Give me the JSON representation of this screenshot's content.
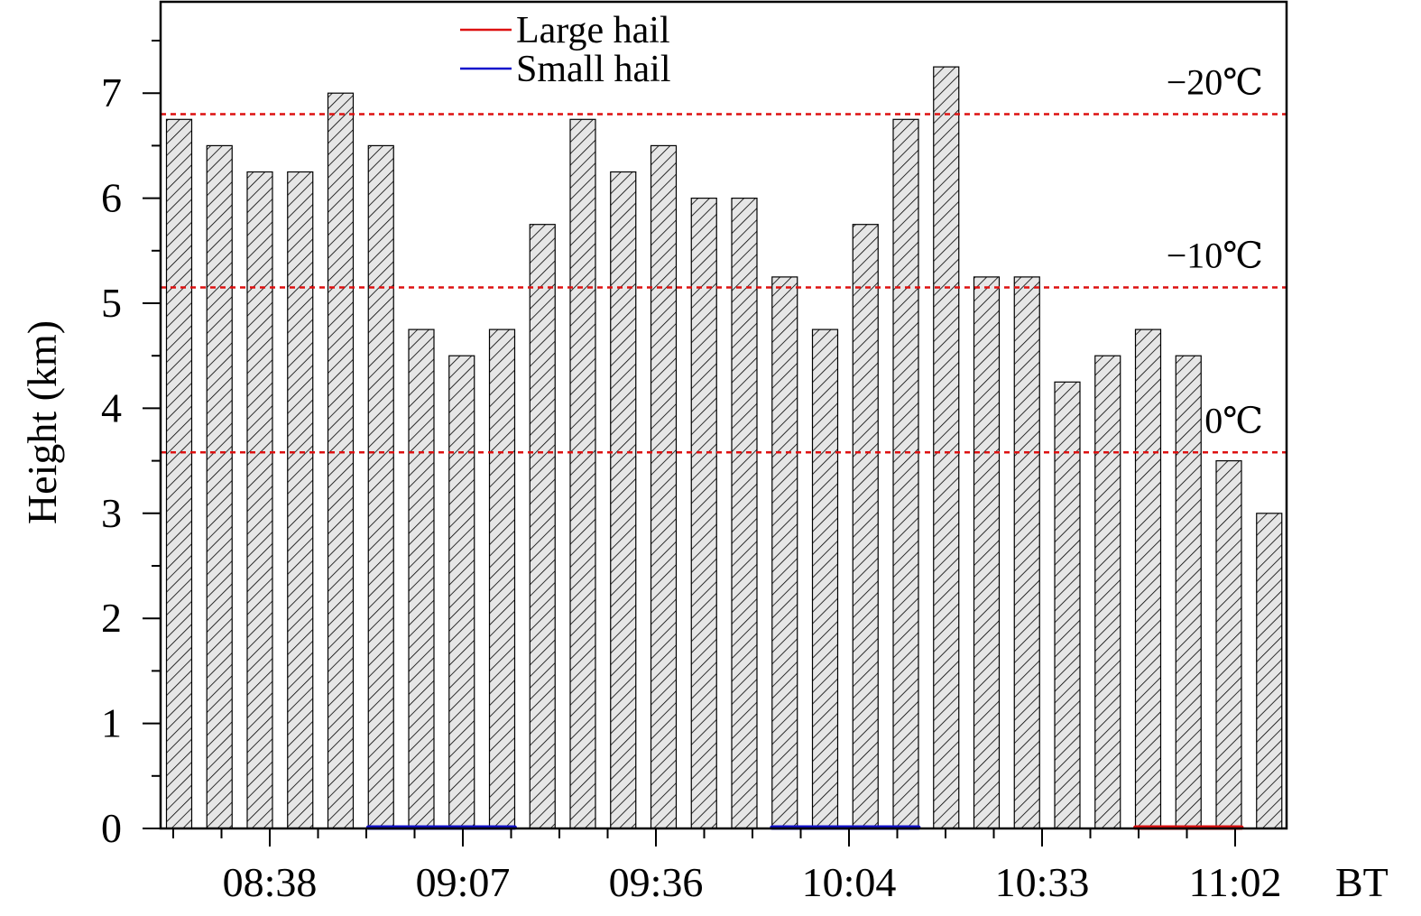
{
  "chart_data": {
    "type": "bar",
    "xlabel": "BT",
    "ylabel": "Height (km)",
    "ylim": [
      0,
      7.7
    ],
    "yticks": [
      0,
      1,
      2,
      3,
      4,
      5,
      6,
      7
    ],
    "x_tick_labels": [
      "08:38",
      "09:07",
      "09:36",
      "10:04",
      "10:33",
      "11:02"
    ],
    "values": [
      6.75,
      6.5,
      6.25,
      6.25,
      7.0,
      6.5,
      4.75,
      4.5,
      4.75,
      5.75,
      6.75,
      6.25,
      6.5,
      6.0,
      6.0,
      5.25,
      4.75,
      5.75,
      6.75,
      7.25,
      5.25,
      5.25,
      4.25,
      4.5,
      4.75,
      4.5,
      3.5,
      3.0
    ],
    "bar_fill": "#e6e6e6",
    "bar_pattern": "diagonal-hatch",
    "isotherms": [
      {
        "label": "−20℃",
        "value": 6.8,
        "color": "#dd1111"
      },
      {
        "label": "−10℃",
        "value": 5.15,
        "color": "#dd1111"
      },
      {
        "label": "0℃",
        "value": 3.58,
        "color": "#dd1111"
      }
    ],
    "legend": [
      {
        "label": "Large hail",
        "color": "#dd1111"
      },
      {
        "label": "Small hail",
        "color": "#1111cc"
      }
    ],
    "legend_position": "top-center",
    "hail_periods": [
      {
        "type": "Small hail",
        "color": "#1111cc",
        "start_bar": 5,
        "end_bar": 8
      },
      {
        "type": "Small hail",
        "color": "#1111cc",
        "start_bar": 15,
        "end_bar": 18
      },
      {
        "type": "Large hail",
        "color": "#dd1111",
        "start_bar": 24,
        "end_bar": 26
      }
    ]
  }
}
